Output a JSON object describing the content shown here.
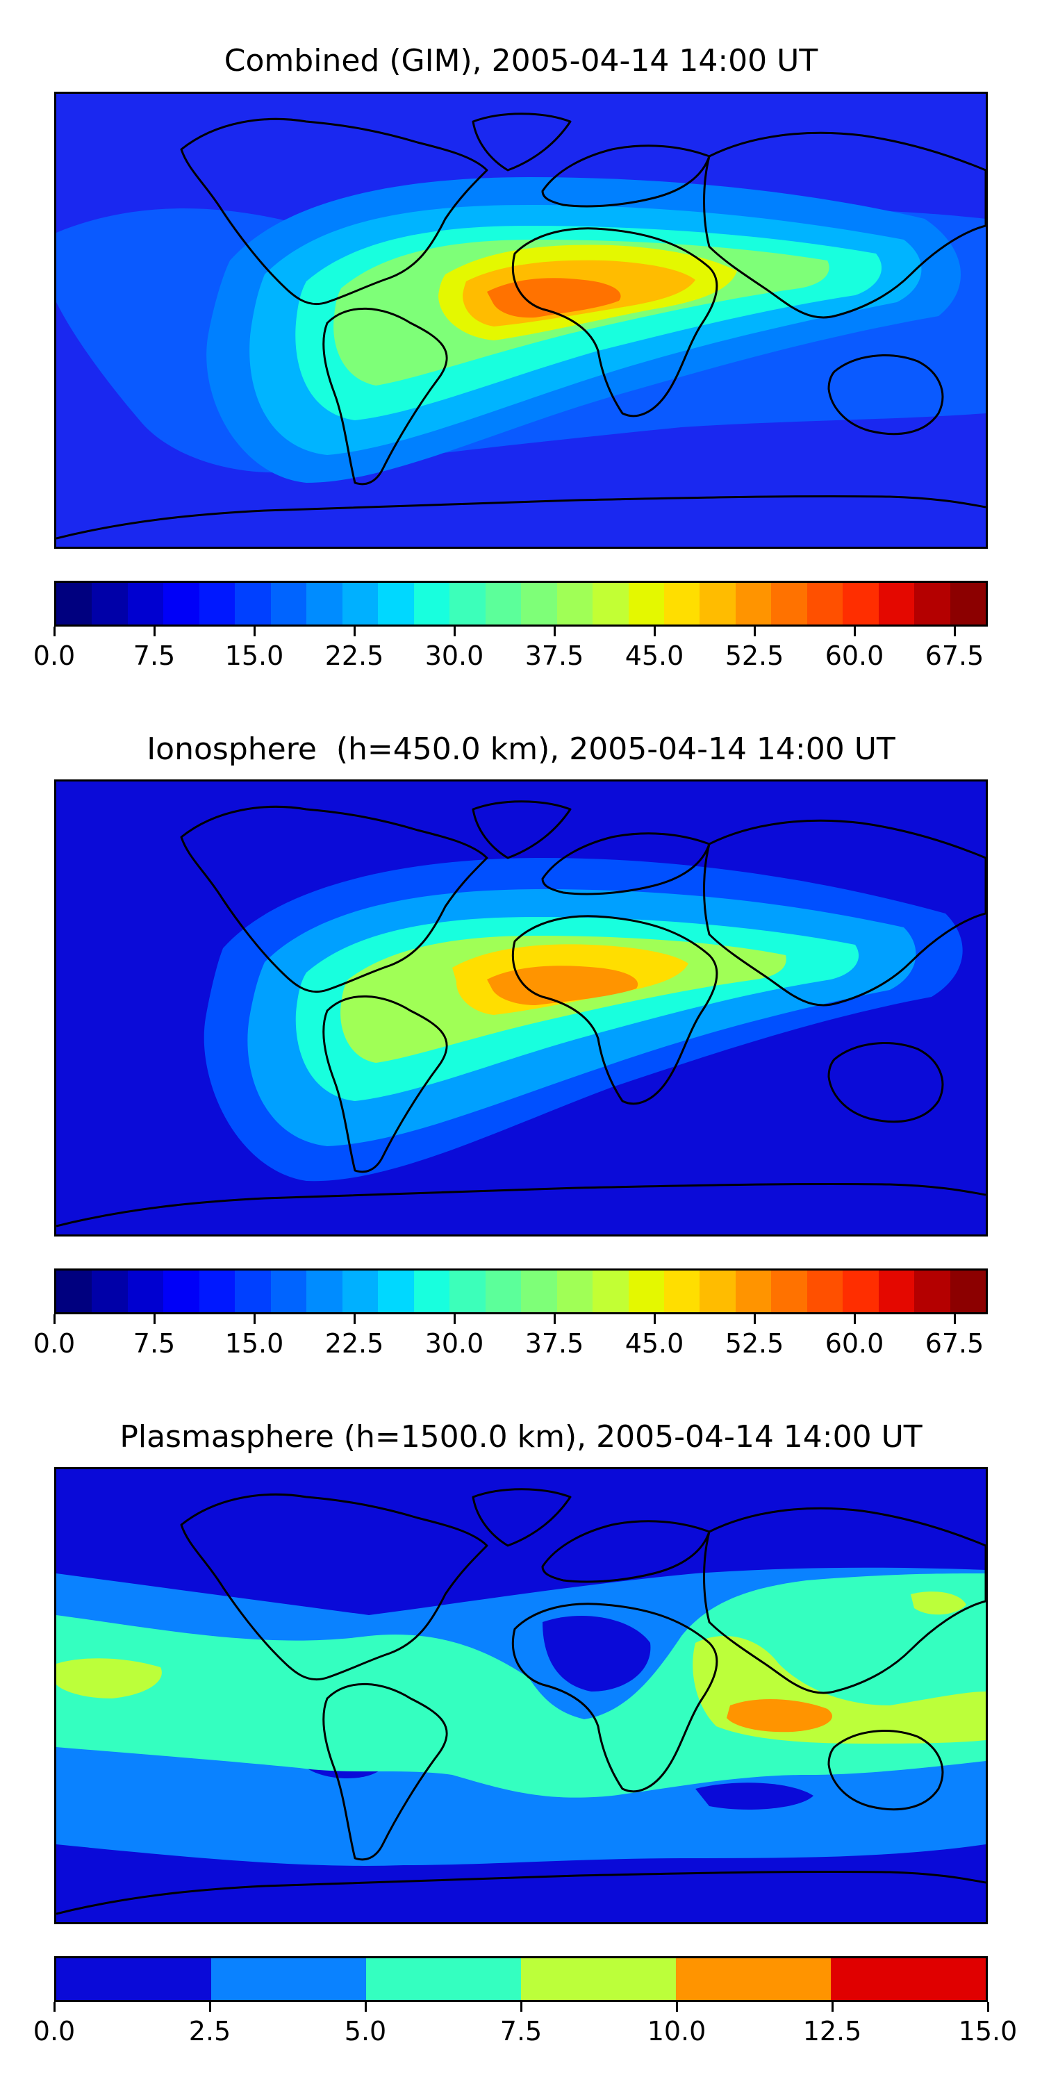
{
  "panels": [
    {
      "title": "Combined (GIM), 2005-04-14 14:00 UT",
      "colorbar": {
        "ticks": [
          "0.0",
          "7.5",
          "15.0",
          "22.5",
          "30.0",
          "37.5",
          "45.0",
          "52.5",
          "60.0",
          "67.5"
        ],
        "tick_values": [
          0,
          7.5,
          15,
          22.5,
          30,
          37.5,
          45,
          52.5,
          60,
          67.5
        ],
        "range": [
          0,
          70
        ],
        "colors": [
          "#00007f",
          "#0000a8",
          "#0000d0",
          "#0000f8",
          "#0018ff",
          "#0040ff",
          "#0064ff",
          "#008cff",
          "#00b0ff",
          "#00d8ff",
          "#18ffde",
          "#3cffba",
          "#5cff9a",
          "#7eff78",
          "#a0ff56",
          "#c2ff34",
          "#e4f800",
          "#ffde00",
          "#ffbc00",
          "#ff9400",
          "#ff7200",
          "#ff5000",
          "#ff2e00",
          "#e40800",
          "#b40000",
          "#8c0000"
        ]
      },
      "field": {
        "background": "#1a28f0",
        "bands": [
          {
            "name": "anomaly-bulge",
            "color": "#0a5aff",
            "level": 12
          },
          {
            "name": "band-1",
            "color": "#0080ff",
            "level": 18
          },
          {
            "name": "band-2",
            "color": "#00b4ff",
            "level": 24
          },
          {
            "name": "band-3",
            "color": "#18ffde",
            "level": 30
          },
          {
            "name": "band-4",
            "color": "#7eff78",
            "level": 38
          },
          {
            "name": "band-5",
            "color": "#e4f800",
            "level": 46
          },
          {
            "name": "band-6",
            "color": "#ffbc00",
            "level": 52
          },
          {
            "name": "peak",
            "color": "#ff7200",
            "level": 58
          }
        ]
      }
    },
    {
      "title": "Ionosphere  (h=450.0 km), 2005-04-14 14:00 UT",
      "colorbar": {
        "ticks": [
          "0.0",
          "7.5",
          "15.0",
          "22.5",
          "30.0",
          "37.5",
          "45.0",
          "52.5",
          "60.0",
          "67.5"
        ],
        "tick_values": [
          0,
          7.5,
          15,
          22.5,
          30,
          37.5,
          45,
          52.5,
          60,
          67.5
        ],
        "range": [
          0,
          70
        ],
        "colors": [
          "#00007f",
          "#0000a8",
          "#0000d0",
          "#0000f8",
          "#0018ff",
          "#0040ff",
          "#0064ff",
          "#008cff",
          "#00b0ff",
          "#00d8ff",
          "#18ffde",
          "#3cffba",
          "#5cff9a",
          "#7eff78",
          "#a0ff56",
          "#c2ff34",
          "#e4f800",
          "#ffde00",
          "#ffbc00",
          "#ff9400",
          "#ff7200",
          "#ff5000",
          "#ff2e00",
          "#e40800",
          "#b40000",
          "#8c0000"
        ]
      },
      "field": {
        "background": "#0b0bd8",
        "bands": [
          {
            "name": "band-1",
            "color": "#0050ff",
            "level": 14
          },
          {
            "name": "band-2",
            "color": "#00a0ff",
            "level": 22
          },
          {
            "name": "band-3",
            "color": "#18ffde",
            "level": 30
          },
          {
            "name": "band-4",
            "color": "#a0ff56",
            "level": 38
          },
          {
            "name": "band-5",
            "color": "#ffde00",
            "level": 46
          },
          {
            "name": "peak",
            "color": "#ff9400",
            "level": 52
          }
        ]
      }
    },
    {
      "title": "Plasmasphere (h=1500.0 km), 2005-04-14 14:00 UT",
      "colorbar": {
        "ticks": [
          "0.0",
          "2.5",
          "5.0",
          "7.5",
          "10.0",
          "12.5",
          "15.0"
        ],
        "tick_values": [
          0,
          2.5,
          5,
          7.5,
          10,
          12.5,
          15
        ],
        "range": [
          0,
          15
        ],
        "colors": [
          "#0a0ad8",
          "#0a82ff",
          "#34ffc0",
          "#bcff3a",
          "#ff9400",
          "#e00000"
        ]
      },
      "field": {
        "background": "#0a0ad8",
        "bands": [
          {
            "name": "mid-band",
            "color": "#0a82ff",
            "level": 3.5
          },
          {
            "name": "equatorial-band",
            "color": "#34ffc0",
            "level": 6
          },
          {
            "name": "high-spots",
            "color": "#bcff3a",
            "level": 8.5
          },
          {
            "name": "max-spot",
            "color": "#ff9400",
            "level": 11
          }
        ]
      }
    }
  ]
}
